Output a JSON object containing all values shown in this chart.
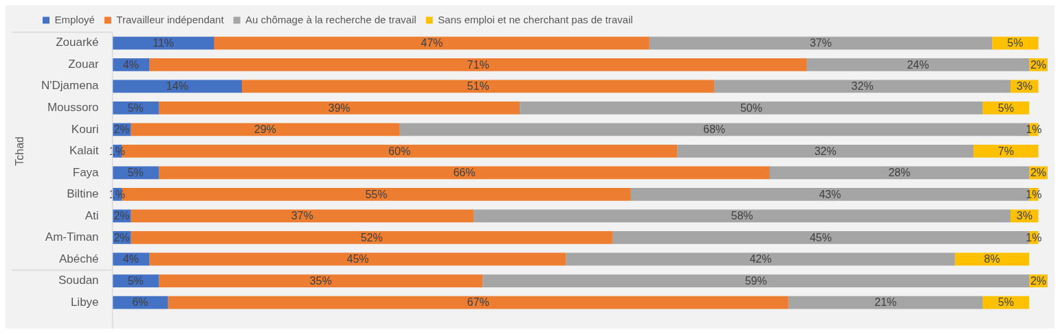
{
  "chart_data": {
    "type": "bar",
    "orientation": "horizontal",
    "stacked": true,
    "legend": "top",
    "ylabel": "Tchad",
    "categories": [
      "Zouarké",
      "Zouar",
      "N'Djamena",
      "Moussoro",
      "Kouri",
      "Kalait",
      "Faya",
      "Biltine",
      "Ati",
      "Am-Timan",
      "Abéché",
      "Soudan",
      "Libye"
    ],
    "series": [
      {
        "name": "Employé",
        "color": "#4472c4",
        "values": [
          11,
          4,
          14,
          5,
          2,
          1,
          5,
          1,
          2,
          2,
          4,
          5,
          6
        ],
        "value_labels": [
          "11%",
          "4%",
          "14%",
          "5%",
          "2%",
          "1%",
          "5%",
          "1%",
          "2%",
          "2%",
          "4%",
          "5%",
          "6%"
        ]
      },
      {
        "name": "Travailleur indépendant",
        "color": "#ed7d31",
        "values": [
          47,
          71,
          51,
          39,
          29,
          60,
          66,
          55,
          37,
          52,
          45,
          35,
          67
        ],
        "value_labels": [
          "47%",
          "71%",
          "51%",
          "39%",
          "29%",
          "60%",
          "66%",
          "55%",
          "37%",
          "52%",
          "45%",
          "35%",
          "67%"
        ]
      },
      {
        "name": "Au chômage à la recherche de travail",
        "color": "#a5a5a5",
        "values": [
          37,
          24,
          32,
          50,
          68,
          32,
          28,
          43,
          58,
          45,
          42,
          59,
          21
        ],
        "value_labels": [
          "37%",
          "24%",
          "32%",
          "50%",
          "68%",
          "32%",
          "28%",
          "43%",
          "58%",
          "45%",
          "42%",
          "59%",
          "21%"
        ]
      },
      {
        "name": "Sans emploi et ne cherchant pas de travail",
        "color": "#ffc000",
        "values": [
          5,
          2,
          3,
          5,
          1,
          7,
          2,
          1,
          3,
          1,
          8,
          2,
          5
        ],
        "value_labels": [
          "5%",
          "2%",
          "3%",
          "5%",
          "1%",
          "7%",
          "2%",
          "1%",
          "3%",
          "1%",
          "8%",
          "2%",
          "5%"
        ]
      }
    ]
  }
}
